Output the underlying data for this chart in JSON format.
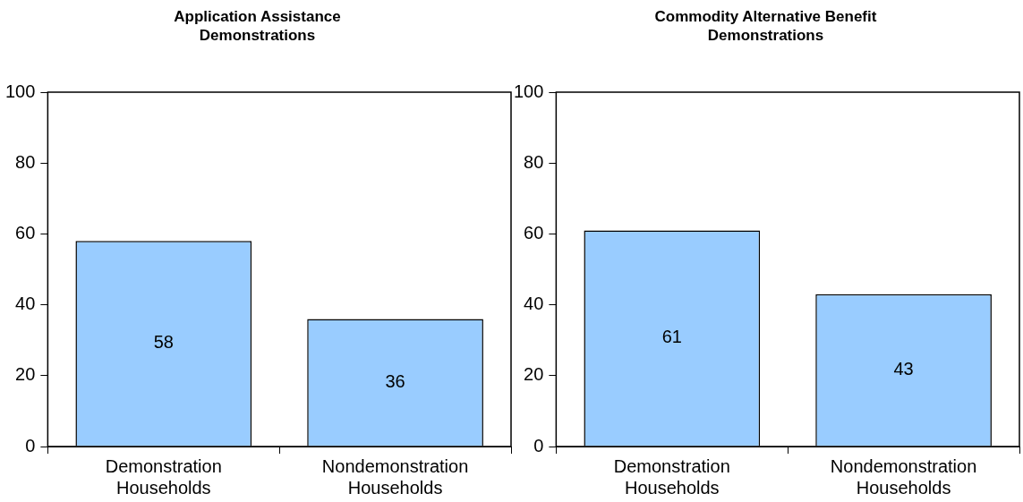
{
  "chart_data": [
    {
      "type": "bar",
      "title": "Application Assistance Demonstrations",
      "categories": [
        "Demonstration Households",
        "Nondemonstration Households"
      ],
      "values": [
        58,
        36
      ],
      "color": "#99ccff",
      "ylim": [
        0,
        100
      ],
      "yticks": [
        0,
        20,
        40,
        60,
        80,
        100
      ],
      "grid": false,
      "legend": false,
      "data_labels": true
    },
    {
      "type": "bar",
      "title": "Commodity Alternative Benefit Demonstrations",
      "categories": [
        "Demonstration Households",
        "Nondemonstration Households"
      ],
      "values": [
        61,
        43
      ],
      "color": "#99ccff",
      "ylim": [
        0,
        100
      ],
      "yticks": [
        0,
        20,
        40,
        60,
        80,
        100
      ],
      "grid": false,
      "legend": false,
      "data_labels": true
    }
  ]
}
